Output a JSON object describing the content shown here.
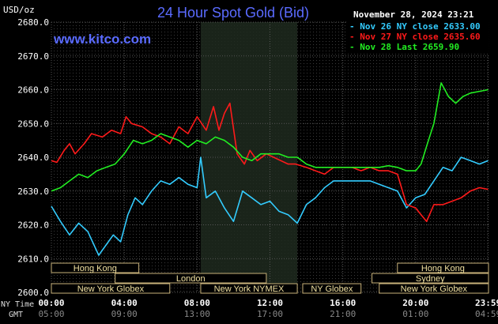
{
  "chart_data": {
    "type": "line",
    "title": "24 Hour Spot Gold (Bid)",
    "watermark": "www.kitco.com",
    "timestamp": "November 28, 2024 23:21",
    "ylabel": "USD/oz",
    "ylim": [
      2600,
      2680
    ],
    "y_ticks": [
      "2600.0",
      "2610.0",
      "2620.0",
      "2630.0",
      "2640.0",
      "2650.0",
      "2660.0",
      "2670.0",
      "2680.0"
    ],
    "grid": "on",
    "legend_position": "top-right",
    "x_axis": {
      "ny_time_label": "NY Time",
      "gmt_label": "GMT",
      "ny_ticks": [
        "00:00",
        "04:00",
        "08:00",
        "12:00",
        "16:00",
        "20:00",
        "23:59"
      ],
      "gmt_ticks": [
        "05:00",
        "09:00",
        "13:00",
        "17:00",
        "21:00",
        "01:00",
        "04:59"
      ],
      "ny_tick_hours": [
        0,
        4,
        8,
        12,
        16,
        20,
        23.98
      ]
    },
    "highlight_hours": [
      8.2,
      13.5
    ],
    "sessions": [
      {
        "name": "Hong Kong",
        "start": -1,
        "end": 4.8
      },
      {
        "name": "London",
        "start": 3.5,
        "end": 11.8
      },
      {
        "name": "New York Globex",
        "start": 0,
        "end": 6.5
      },
      {
        "name": "New York NYMEX",
        "start": 8.2,
        "end": 13.5
      },
      {
        "name": "NY Globex",
        "start": 13.8,
        "end": 17
      },
      {
        "name": "Sydney",
        "start": 17.6,
        "end": 24.5
      },
      {
        "name": "Hong Kong",
        "start": 19,
        "end": 24.5
      },
      {
        "name": "New York Globex",
        "start": 18,
        "end": 24.5
      }
    ],
    "series": [
      {
        "name": "Nov 26 NY close 2633.00",
        "color": "#33ccff",
        "x": [
          0,
          0.5,
          1,
          1.5,
          2,
          2.6,
          3,
          3.4,
          3.8,
          4.2,
          4.6,
          5,
          5.5,
          6,
          6.5,
          7,
          7.5,
          8,
          8.2,
          8.5,
          9,
          9.5,
          10,
          10.5,
          11,
          11.5,
          12,
          12.5,
          13,
          13.5,
          14,
          14.5,
          15,
          15.5,
          16,
          16.5,
          17,
          17.5,
          18,
          18.5,
          19,
          19.5,
          20,
          20.5,
          21,
          21.5,
          22,
          22.5,
          23,
          23.5,
          23.98
        ],
        "values": [
          2625.5,
          2621,
          2617,
          2620.5,
          2618,
          2611,
          2614,
          2617,
          2615,
          2623,
          2628,
          2626,
          2630,
          2633,
          2632,
          2634,
          2632,
          2631,
          2640,
          2628,
          2630,
          2625,
          2621,
          2630,
          2628,
          2626,
          2627,
          2624,
          2623,
          2620.5,
          2626,
          2628,
          2631,
          2633,
          2633,
          2633,
          2633,
          2633,
          2632,
          2631,
          2630,
          2625,
          2628,
          2629,
          2633,
          2637,
          2636,
          2640,
          2639,
          2638,
          2639
        ]
      },
      {
        "name": "Nov 27 NY close 2635.60",
        "color": "#ff1a1a",
        "x": [
          0,
          0.3,
          0.7,
          1,
          1.3,
          1.8,
          2.2,
          2.8,
          3.3,
          3.8,
          4.1,
          4.4,
          5,
          5.5,
          6,
          6.5,
          7,
          7.5,
          8,
          8.5,
          8.9,
          9.2,
          9.5,
          9.8,
          10.2,
          10.6,
          10.9,
          11.3,
          11.8,
          12.2,
          12.6,
          13,
          13.4,
          14,
          14.5,
          15,
          15.5,
          16,
          16.5,
          17,
          17.5,
          18,
          18.5,
          19,
          19.5,
          20,
          20.3,
          20.6,
          21,
          21.5,
          22,
          22.5,
          23,
          23.5,
          23.98
        ],
        "values": [
          2639,
          2638.5,
          2642,
          2644,
          2641,
          2644,
          2647,
          2646,
          2648,
          2647,
          2652,
          2650,
          2649,
          2647,
          2646,
          2644,
          2649,
          2647,
          2652,
          2648,
          2655,
          2648,
          2653,
          2656,
          2641,
          2638,
          2642,
          2639,
          2641,
          2640,
          2639,
          2638,
          2638,
          2637,
          2636,
          2635,
          2637,
          2637,
          2637,
          2636,
          2637,
          2636,
          2636,
          2635,
          2626,
          2625,
          2623,
          2621,
          2626,
          2626,
          2627,
          2628,
          2630,
          2631,
          2630.5
        ]
      },
      {
        "name": "Nov 28 Last 2659.90",
        "color": "#22ee22",
        "x": [
          0,
          0.5,
          1,
          1.5,
          2,
          2.5,
          3,
          3.5,
          4,
          4.5,
          5,
          5.5,
          6,
          6.5,
          7,
          7.5,
          8,
          8.5,
          9,
          9.5,
          10,
          10.5,
          11,
          11.5,
          12,
          12.5,
          13,
          13.5,
          14,
          14.5,
          15,
          15.5,
          16,
          16.5,
          17,
          17.5,
          18,
          18.5,
          19,
          19.5,
          20,
          20.3,
          20.7,
          21,
          21.4,
          21.8,
          22.2,
          22.6,
          23,
          23.5,
          23.98
        ],
        "values": [
          2630,
          2631,
          2633,
          2635,
          2634,
          2636,
          2637,
          2638,
          2641,
          2645,
          2644,
          2645,
          2647,
          2646,
          2645,
          2643,
          2645,
          2644,
          2646,
          2645,
          2643,
          2640,
          2639,
          2641,
          2641,
          2641,
          2640,
          2640,
          2638,
          2637,
          2637,
          2637,
          2637,
          2637,
          2637,
          2637,
          2637,
          2637.5,
          2637,
          2636,
          2636,
          2638,
          2645,
          2650,
          2662,
          2658,
          2656,
          2658,
          2659,
          2659.5,
          2660
        ]
      }
    ]
  }
}
